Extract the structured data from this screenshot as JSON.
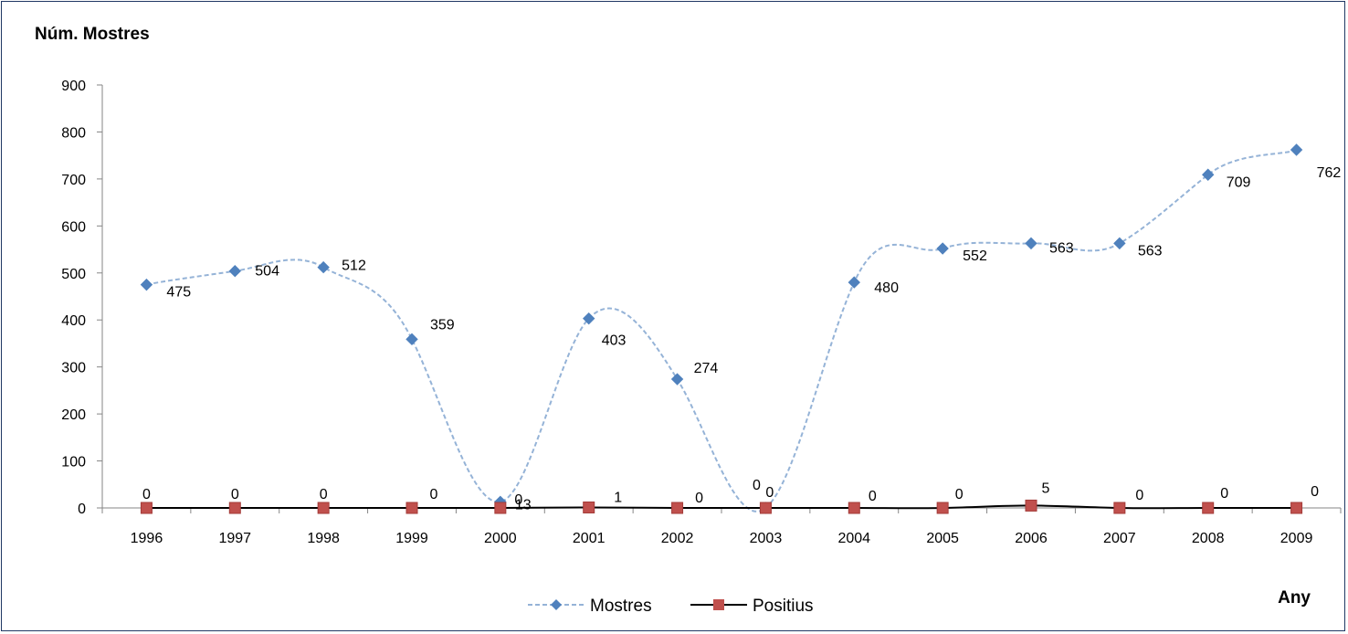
{
  "chart_data": {
    "type": "line",
    "ylabel": "Núm. Mostres",
    "xlabel": "Any",
    "categories": [
      "1996",
      "1997",
      "1998",
      "1999",
      "2000",
      "2001",
      "2002",
      "2003",
      "2004",
      "2005",
      "2006",
      "2007",
      "2008",
      "2009"
    ],
    "ylim": [
      0,
      900
    ],
    "yticks": [
      "0",
      "100",
      "200",
      "300",
      "400",
      "500",
      "600",
      "700",
      "800",
      "900"
    ],
    "grid": false,
    "legend_position": "bottom",
    "series": [
      {
        "name": "Mostres",
        "values": [
          475,
          504,
          512,
          359,
          13,
          403,
          274,
          0,
          480,
          552,
          563,
          563,
          709,
          762
        ],
        "labels": [
          "475",
          "504",
          "512",
          "359",
          "13",
          "403",
          "274",
          "0",
          "480",
          "552",
          "563",
          "563",
          "709",
          "762"
        ],
        "color": "#95b3d7",
        "marker_color": "#4f81bd",
        "marker": "diamond",
        "line_style": "dashed",
        "smooth": true
      },
      {
        "name": "Positius",
        "values": [
          0,
          0,
          0,
          0,
          0,
          1,
          0,
          0,
          0,
          0,
          5,
          0,
          0,
          0
        ],
        "labels": [
          "0",
          "0",
          "0",
          "0",
          "0",
          "1",
          "0",
          "0",
          "0",
          "0",
          "5",
          "0",
          "0",
          "0"
        ],
        "color": "#000000",
        "marker_color": "#c0504d",
        "marker": "square",
        "line_style": "solid",
        "smooth": true
      }
    ]
  }
}
